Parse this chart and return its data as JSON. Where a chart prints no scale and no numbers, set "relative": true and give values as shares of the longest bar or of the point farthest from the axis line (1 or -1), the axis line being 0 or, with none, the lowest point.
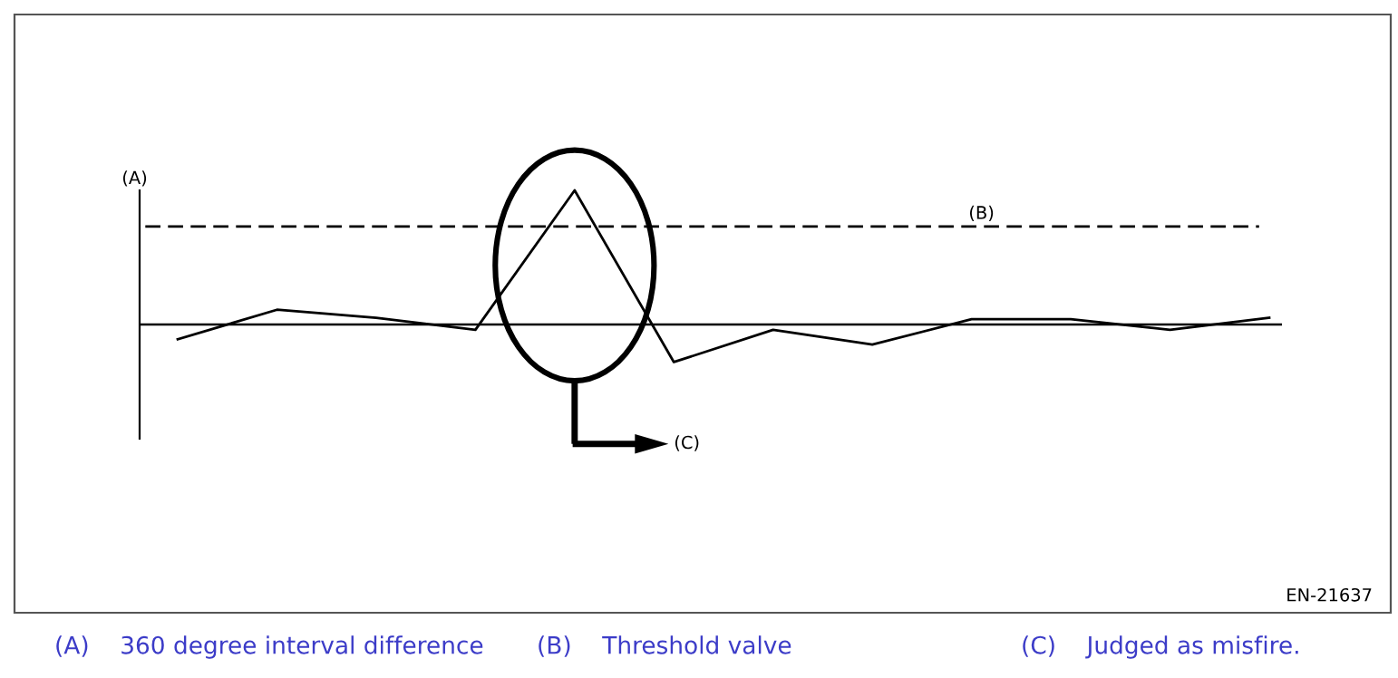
{
  "chart_data": {
    "type": "line",
    "relative": true,
    "ylabel": "(A)",
    "categories": [
      null,
      null,
      null,
      null,
      null,
      null,
      null,
      null,
      null,
      null,
      null,
      null
    ],
    "series": [
      {
        "color": "#000000",
        "values": [
          -0.11,
          0.11,
          0.05,
          -0.04,
          1,
          -0.28,
          -0.04,
          -0.15,
          0.04,
          0.04,
          -0.04,
          0.05
        ]
      }
    ],
    "ref_lines": [
      {
        "axis": "y",
        "value": 0.73,
        "label": "(B)",
        "color": "#000000",
        "line_style": "dashed"
      }
    ],
    "annotations": [
      "(C)",
      "(A)    360 degree interval difference",
      "(B)    Threshold valve",
      "(C)    Judged as misfire.",
      "EN-21637"
    ],
    "marker": "none",
    "line_style": "solid"
  }
}
